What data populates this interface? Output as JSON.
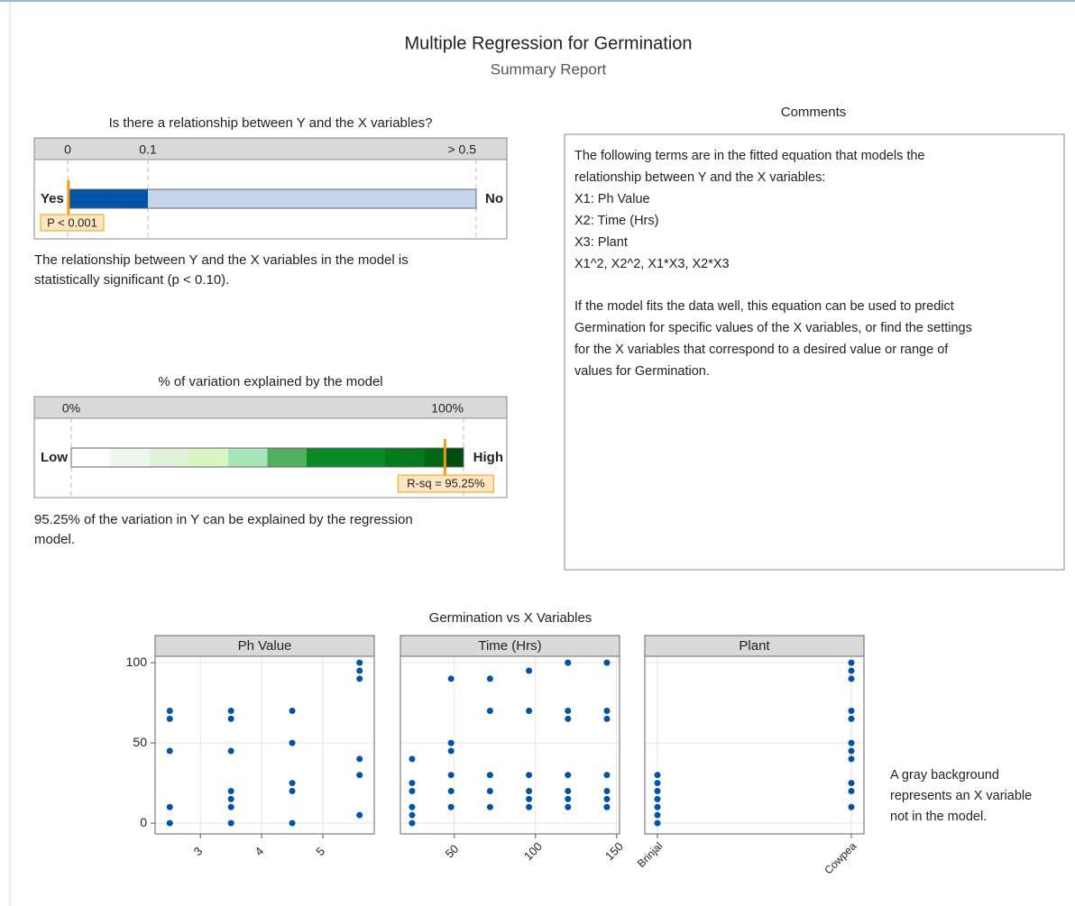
{
  "header": {
    "title": "Multiple Regression for Germination",
    "subtitle": "Summary Report"
  },
  "relationship": {
    "title": "Is there a relationship between Y and the X variables?",
    "ticks": [
      0,
      0.1,
      {
        "value": 0.5,
        "label": "> 0.5"
      }
    ],
    "segments": [
      {
        "from": 0,
        "to": 0.1,
        "color": "#0054a6"
      },
      {
        "from": 0.1,
        "to": 0.5,
        "color": "#c5d5ee"
      }
    ],
    "left_label": "Yes",
    "right_label": "No",
    "value": 0.001,
    "value_label": "P < 0.001",
    "text": [
      "The relationship between Y and the X variables in the model is",
      "statistically significant (p < 0.10)."
    ]
  },
  "variation": {
    "title": "% of variation explained by the model",
    "ticks": [
      {
        "value": 0,
        "label": "0%"
      },
      {
        "value": 100,
        "label": "100%"
      }
    ],
    "segments": [
      {
        "from": 0,
        "to": 10,
        "color": "#ffffff"
      },
      {
        "from": 10,
        "to": 20,
        "color": "#eef7ec"
      },
      {
        "from": 20,
        "to": 30,
        "color": "#e1f2da"
      },
      {
        "from": 30,
        "to": 40,
        "color": "#d9f6c2"
      },
      {
        "from": 40,
        "to": 50,
        "color": "#a8e4b9"
      },
      {
        "from": 50,
        "to": 60,
        "color": "#50b060"
      },
      {
        "from": 60,
        "to": 80,
        "color": "#0a8a24"
      },
      {
        "from": 80,
        "to": 90,
        "color": "#037a1b"
      },
      {
        "from": 90,
        "to": 95,
        "color": "#006814"
      },
      {
        "from": 95,
        "to": 100,
        "color": "#004d10"
      }
    ],
    "left_label": "Low",
    "right_label": "High",
    "value": 95.25,
    "value_label": "R-sq = 95.25%",
    "text": [
      "95.25% of the variation in Y can be explained by the regression",
      "model."
    ]
  },
  "comments": {
    "title": "Comments",
    "paragraphs": [
      [
        "The following terms are in the fitted equation that models the",
        "relationship between Y and the X variables:",
        "X1: Ph Value",
        "X2: Time (Hrs)",
        "X3: Plant",
        "X1^2, X2^2, X1*X3, X2*X3"
      ],
      [
        "If the model fits the data well, this equation can be used to predict",
        "Germination for specific values of the X variables, or find the settings",
        "for the X variables that correspond to a desired value or range of",
        "values for Germination."
      ]
    ]
  },
  "scatter_section": {
    "title": "Germination vs X Variables",
    "note": [
      "A gray background",
      "represents an X variable",
      "not in the model."
    ]
  },
  "chart_data": [
    {
      "type": "scatter",
      "title": "Ph Value",
      "x": [
        2.5,
        2.5,
        2.5,
        2.5,
        2.5,
        3.5,
        3.5,
        3.5,
        3.5,
        3.5,
        3.5,
        3.5,
        4.5,
        4.5,
        4.5,
        4.5,
        4.5,
        5.6,
        5.6,
        5.6,
        5.6,
        5.6,
        5.6
      ],
      "values": [
        70,
        65,
        45,
        10,
        0,
        70,
        65,
        45,
        20,
        15,
        10,
        0,
        70,
        50,
        25,
        20,
        0,
        100,
        95,
        90,
        40,
        30,
        5
      ],
      "xlim": [
        2.26,
        5.84
      ],
      "xticks": [
        3,
        4,
        5
      ],
      "ylim": [
        -6.7,
        104
      ],
      "yticks": [
        0,
        50,
        100
      ],
      "color": "#0054a6",
      "grid": true
    },
    {
      "type": "scatter",
      "title": "Time (Hrs)",
      "x": [
        24,
        24,
        24,
        24,
        24,
        24,
        48,
        48,
        48,
        48,
        48,
        48,
        72,
        72,
        72,
        72,
        72,
        96,
        96,
        96,
        96,
        96,
        96,
        120,
        120,
        120,
        120,
        120,
        120,
        120,
        144,
        144,
        144,
        144,
        144,
        144,
        144
      ],
      "values": [
        40,
        25,
        20,
        10,
        5,
        0,
        90,
        50,
        45,
        30,
        20,
        10,
        90,
        70,
        30,
        20,
        10,
        95,
        70,
        30,
        20,
        15,
        10,
        100,
        70,
        65,
        30,
        20,
        15,
        10,
        100,
        70,
        65,
        30,
        20,
        15,
        10
      ],
      "xlim": [
        16.8,
        151.8
      ],
      "xticks": [
        50,
        100,
        150
      ],
      "ylim": [
        -6.7,
        104
      ],
      "yticks": [
        0,
        50,
        100
      ],
      "color": "#0054a6",
      "grid": true
    },
    {
      "type": "strip",
      "title": "Plant",
      "categories": [
        "Brinjal",
        "Cowpea"
      ],
      "values": [
        [
          30,
          25,
          20,
          15,
          10,
          5,
          0
        ],
        [
          100,
          95,
          90,
          70,
          65,
          50,
          45,
          40,
          25,
          20,
          10
        ]
      ],
      "ylim": [
        -6.7,
        104
      ],
      "yticks": [
        0,
        50,
        100
      ],
      "color": "#0054a6",
      "grid": true
    }
  ]
}
